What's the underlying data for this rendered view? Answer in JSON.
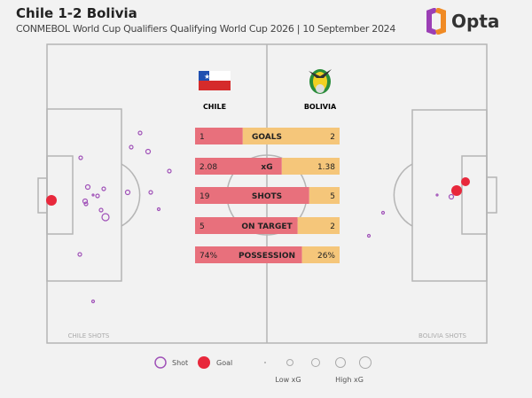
{
  "header": {
    "title": "Chile 1-2 Bolivia",
    "subtitle": "CONMEBOL World Cup Qualifiers Qualifying World Cup 2026 | 10 September 2024",
    "brand": "Opta"
  },
  "teams": {
    "home": "CHILE",
    "away": "BOLIVIA",
    "home_shots_label": "CHILE SHOTS",
    "away_shots_label": "BOLIVIA SHOTS"
  },
  "colors": {
    "home": "#e8707c",
    "away": "#f5c67a",
    "shot": "#a052b8",
    "goal": "#e8283c"
  },
  "stats": [
    {
      "label": "GOALS",
      "home": "1",
      "away": "2",
      "home_share": 0.33
    },
    {
      "label": "xG",
      "home": "2.08",
      "away": "1.38",
      "home_share": 0.6
    },
    {
      "label": "SHOTS",
      "home": "19",
      "away": "5",
      "home_share": 0.79
    },
    {
      "label": "ON TARGET",
      "home": "5",
      "away": "2",
      "home_share": 0.71
    },
    {
      "label": "POSSESSION",
      "home": "74%",
      "away": "26%",
      "home_share": 0.74
    }
  ],
  "legend": {
    "shot": "Shot",
    "goal": "Goal",
    "low": "Low xG",
    "high": "High xG"
  }
}
